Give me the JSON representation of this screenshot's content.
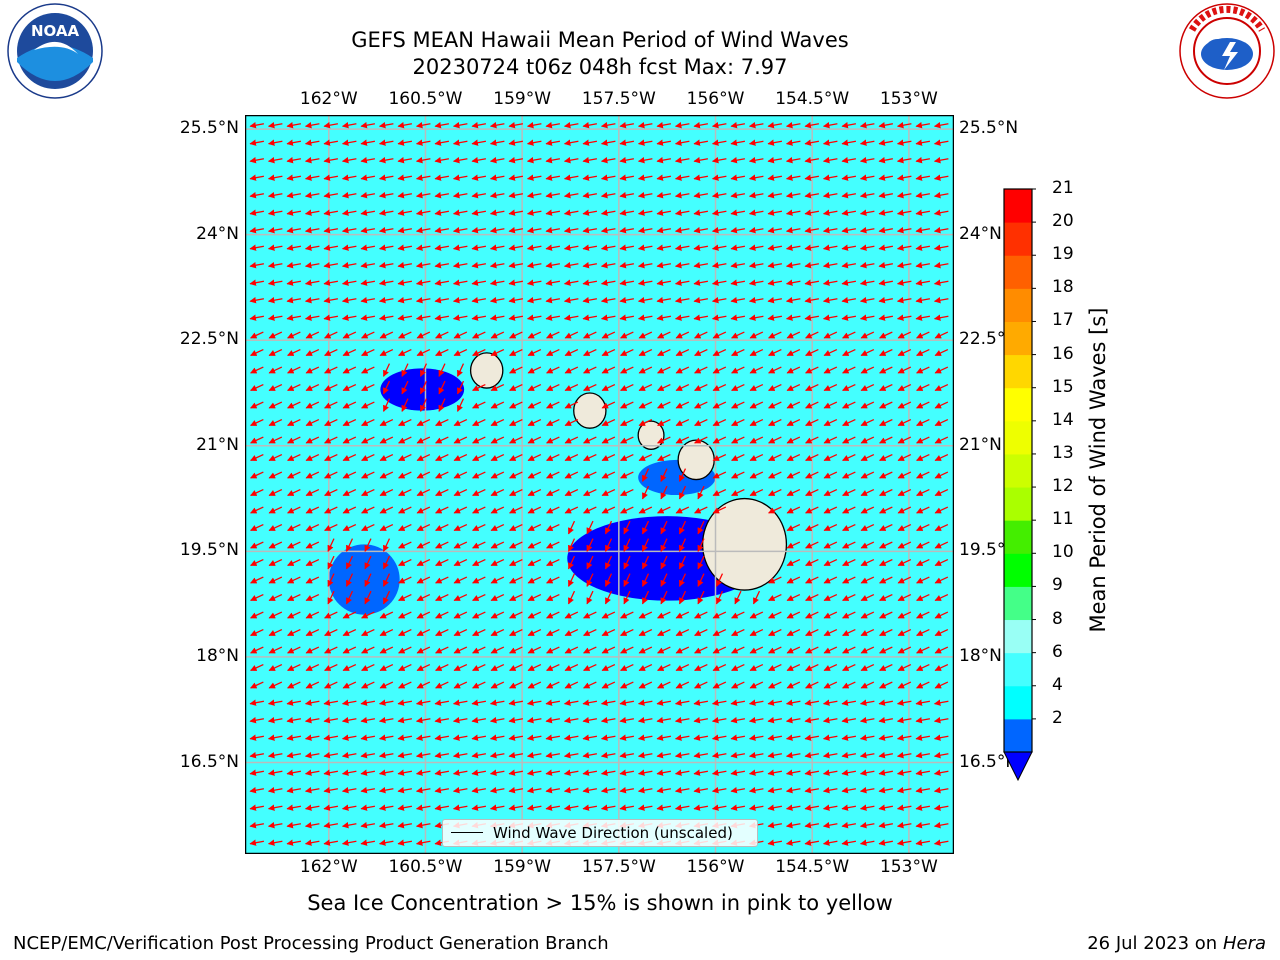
{
  "title_line_1": "GEFS MEAN Hawaii Mean Period of Wind Waves",
  "title_line_2": "20230724 t06z 048h fcst   Max: 7.97",
  "subtitle": "Sea Ice Concentration > 15% is shown in pink to yellow",
  "footer_left": "NCEP/EMC/Verification Post Processing Product Generation Branch",
  "footer_right_date": "26 Jul 2023 on ",
  "footer_right_host": "Hera",
  "legend_label": "Wind Wave Direction (unscaled)",
  "logos": {
    "noaa": {
      "text": "NOAA",
      "ring_text": "NATIONAL OCEANIC AND ATMOSPHERIC ADMINISTRATION · U.S. DEPARTMENT OF COMMERCE"
    },
    "nws": {
      "ring_text": "NATIONAL WEATHER SERVICE"
    }
  },
  "chart_data": {
    "type": "map",
    "map": {
      "lon_range": [
        -163.3,
        -152.3
      ],
      "lat_range": [
        15.2,
        25.7
      ],
      "lon_ticks": [
        -162,
        -160.5,
        -159,
        -157.5,
        -156,
        -154.5,
        -153
      ],
      "lon_tick_labels": [
        "162°W",
        "160.5°W",
        "159°W",
        "157.5°W",
        "156°W",
        "154.5°W",
        "153°W"
      ],
      "lat_ticks": [
        25.5,
        24,
        22.5,
        21,
        19.5,
        18,
        16.5
      ],
      "lat_tick_labels": [
        "25.5°N",
        "24°N",
        "22.5°N",
        "21°N",
        "19.5°N",
        "18°N",
        "16.5°N"
      ],
      "grid": true,
      "background_period_s": 7,
      "low_period_regions": [
        {
          "level": "2-4",
          "lon": [
            -161.2,
            -159.9
          ],
          "lat": [
            21.5,
            22.1
          ]
        },
        {
          "level": "4-6",
          "lon": [
            -162.0,
            -160.9
          ],
          "lat": [
            18.6,
            19.6
          ]
        },
        {
          "level": "2-4",
          "lon": [
            -158.3,
            -155.2
          ],
          "lat": [
            18.8,
            20.0
          ]
        },
        {
          "level": "4-6",
          "lon": [
            -157.2,
            -156.0
          ],
          "lat": [
            20.3,
            20.8
          ]
        }
      ],
      "islands": [
        {
          "name": "Kauai",
          "lon": -159.55,
          "lat": 22.07,
          "r": 0.25
        },
        {
          "name": "Oahu",
          "lon": -157.95,
          "lat": 21.5,
          "r": 0.25
        },
        {
          "name": "Molokai",
          "lon": -157.0,
          "lat": 21.15,
          "r": 0.2
        },
        {
          "name": "Maui",
          "lon": -156.3,
          "lat": 20.8,
          "r": 0.28
        },
        {
          "name": "Hawaii",
          "lon": -155.55,
          "lat": 19.6,
          "r": 0.65
        }
      ],
      "wind_direction": "easterly"
    },
    "colorbar": {
      "label": "Mean Period of Wind Waves [s]",
      "ticks": [
        2,
        4,
        6,
        8,
        9,
        10,
        11,
        12,
        13,
        14,
        15,
        16,
        17,
        18,
        19,
        20,
        21
      ],
      "tick_labels": [
        "2",
        "4",
        "6",
        "8",
        "9",
        "10",
        "11",
        "12",
        "13",
        "14",
        "15",
        "16",
        "17",
        "18",
        "19",
        "20",
        "21"
      ],
      "colors": [
        "#0066ff",
        "#00ffff",
        "#44ffff",
        "#99fff5",
        "#44ff88",
        "#00ff00",
        "#44ee00",
        "#aaff00",
        "#ccff00",
        "#eeff00",
        "#ffff00",
        "#ffd700",
        "#ffaa00",
        "#ff8c00",
        "#ff6000",
        "#ff3000",
        "#ff0000"
      ],
      "underflow_color": "#0000ff"
    },
    "colors": {
      "background_sea": "#44ffff",
      "low_period_2_4": "#0000ff",
      "low_period_4_6": "#0066ff",
      "land": "#efeadb",
      "arrows": "#ff0000",
      "grid": "#bbbbbb"
    }
  }
}
